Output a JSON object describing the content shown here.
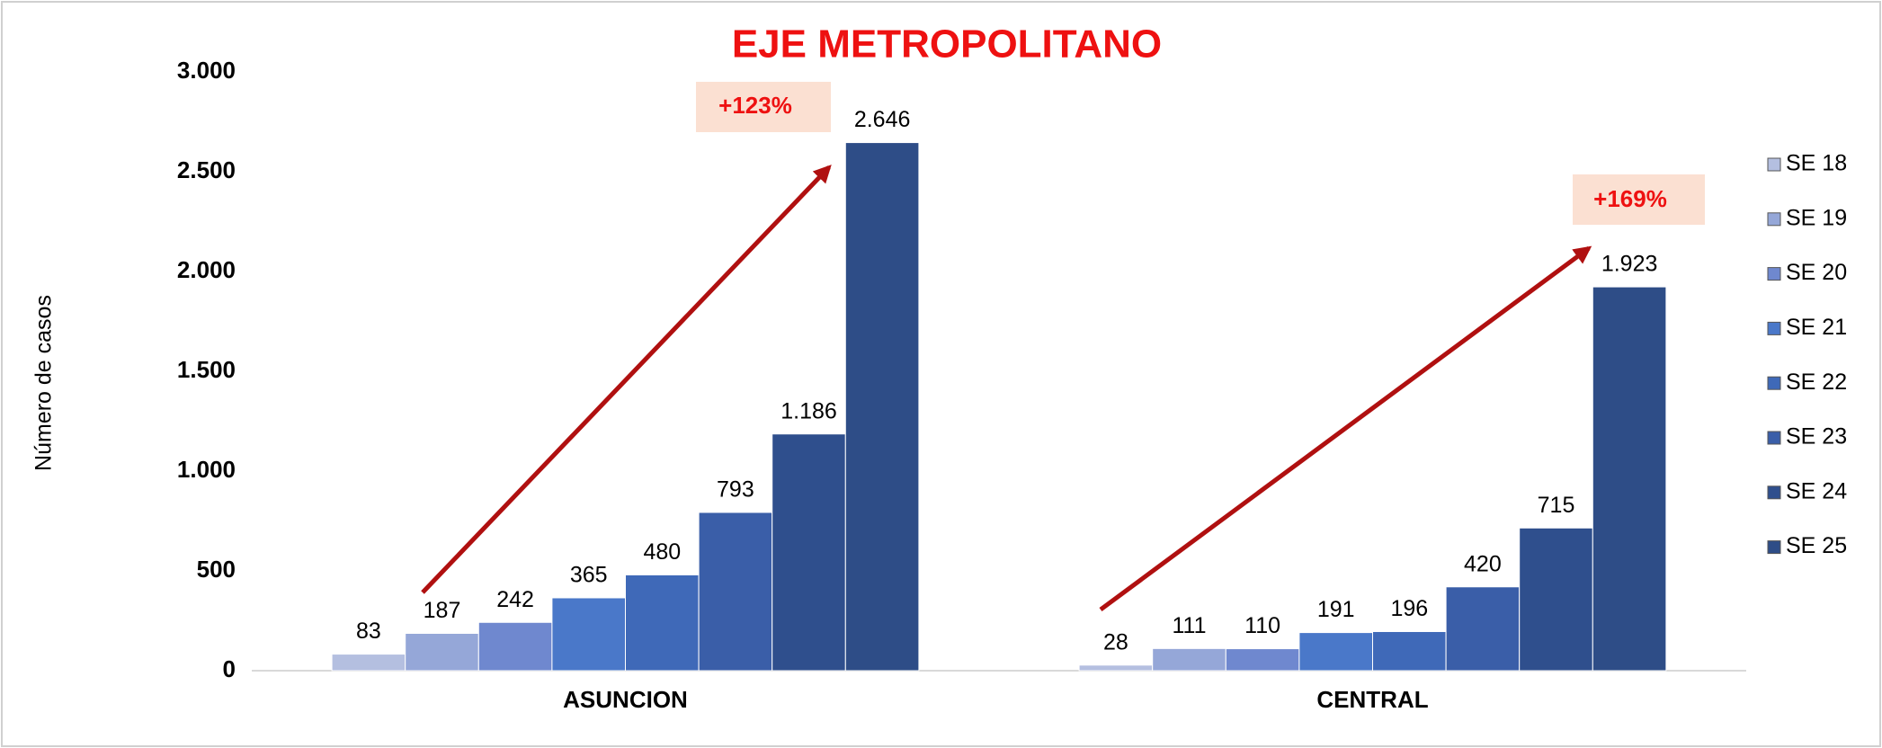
{
  "chart_data": {
    "type": "bar",
    "title": "EJE METROPOLITANO",
    "y_label": "Número de casos",
    "categories": [
      "ASUNCION",
      "CENTRAL"
    ],
    "series": [
      {
        "name": "SE 18",
        "color": "#b4bfe0",
        "values": [
          83,
          28
        ]
      },
      {
        "name": "SE 19",
        "color": "#95a7d8",
        "values": [
          187,
          111
        ]
      },
      {
        "name": "SE 20",
        "color": "#6f88cf",
        "values": [
          242,
          110
        ]
      },
      {
        "name": "SE 21",
        "color": "#4a78c9",
        "values": [
          365,
          191
        ]
      },
      {
        "name": "SE 22",
        "color": "#3f69b8",
        "values": [
          480,
          196
        ]
      },
      {
        "name": "SE 23",
        "color": "#3a5ea8",
        "values": [
          793,
          420
        ]
      },
      {
        "name": "SE 24",
        "color": "#2f4f8d",
        "values": [
          1186,
          715
        ],
        "value_labels": [
          "1.186",
          "715"
        ]
      },
      {
        "name": "SE 25",
        "color": "#2e4d87",
        "values": [
          2646,
          1923
        ],
        "value_labels": [
          "2.646",
          "1.923"
        ]
      }
    ],
    "ylim": [
      0,
      3000
    ],
    "yticks": [
      0,
      500,
      {
        "value": 1000,
        "label": "1.000"
      },
      {
        "value": 1500,
        "label": "1.500"
      },
      {
        "value": 2000,
        "label": "2.000"
      },
      {
        "value": 2500,
        "label": "2.500"
      },
      {
        "value": 3000,
        "label": "3.000"
      }
    ],
    "annotations": [
      "+123%",
      "+169%"
    ],
    "legend": "right"
  }
}
